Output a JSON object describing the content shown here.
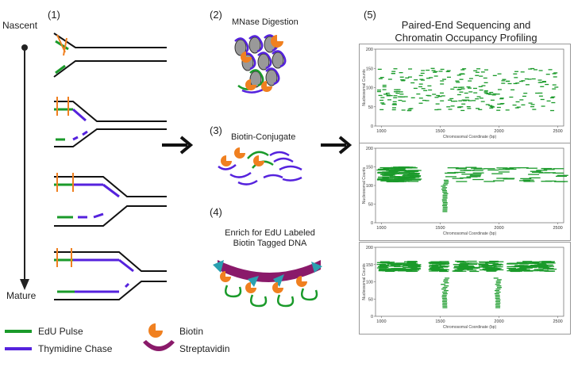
{
  "labels": {
    "nascent": "Nascent",
    "mature": "Mature",
    "panel1": "(1)",
    "panel2": "(2)",
    "panel3": "(3)",
    "panel4": "(4)",
    "panel5": "(5)",
    "mnase": "MNase Digestion",
    "biotin_conjugate": "Biotin-Conjugate",
    "enrich_line1": "Enrich for EdU Labeled",
    "enrich_line2": "Biotin Tagged DNA",
    "seq_line1": "Paired-End Sequencing and",
    "seq_line2": "Chromatin Occupancy Profiling"
  },
  "legend": {
    "edu": "EdU Pulse",
    "thymidine": "Thymidine Chase",
    "biotin": "Biotin",
    "streptavidin": "Streptavidin"
  },
  "colors": {
    "edu": "#1a9a2a",
    "thymidine": "#5522dd",
    "biotin": "#f08020",
    "streptavidin": "#8a1a6a",
    "triangle": "#2aa0b0",
    "nucleosome": "#888888"
  },
  "chart_data": [
    {
      "type": "scatter",
      "ylabel": "Nucleosomal Counts",
      "xlabel": "Chromosomal Coordinate (bp)",
      "xlim": [
        950,
        2550
      ],
      "ylim": [
        0,
        200
      ],
      "xticks": [
        "1000",
        "1500",
        "2000",
        "2500"
      ],
      "yticks": [
        "0",
        "50",
        "100",
        "150",
        "200"
      ]
    },
    {
      "type": "scatter",
      "ylabel": "Nucleosomal Counts",
      "xlabel": "Chromosomal Coordinate (bp)",
      "xlim": [
        950,
        2550
      ],
      "ylim": [
        0,
        200
      ],
      "xticks": [
        "1000",
        "1500",
        "2000",
        "2500"
      ],
      "yticks": [
        "0",
        "50",
        "100",
        "150",
        "200"
      ]
    },
    {
      "type": "scatter",
      "ylabel": "Nucleosomal Counts",
      "xlabel": "Chromosomal Coordinate (bp)",
      "xlim": [
        950,
        2550
      ],
      "ylim": [
        0,
        200
      ],
      "xticks": [
        "1000",
        "1500",
        "2000",
        "2500"
      ],
      "yticks": [
        "0",
        "50",
        "100",
        "150",
        "200"
      ]
    }
  ]
}
